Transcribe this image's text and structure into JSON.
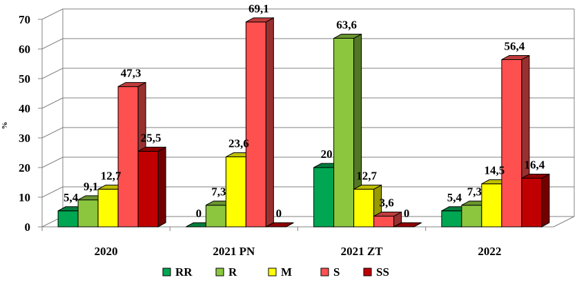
{
  "chart_data": {
    "type": "bar",
    "ylabel": "%",
    "ylim": [
      0,
      70
    ],
    "yticks": [
      0,
      10,
      20,
      30,
      40,
      50,
      60,
      70
    ],
    "grid": true,
    "legend_position": "bottom",
    "categories": [
      "2020",
      "2021 PN",
      "2021 ZT",
      "2022"
    ],
    "series": [
      {
        "name": "RR",
        "color": "#00a651",
        "values": [
          5.4,
          0,
          20,
          5.4
        ],
        "labels": [
          "5,4",
          "0",
          "20",
          "5,4"
        ]
      },
      {
        "name": "R",
        "color": "#8cc63f",
        "values": [
          9.1,
          7.3,
          63.6,
          7.3
        ],
        "labels": [
          "9,1",
          "7,3",
          "63,6",
          "7,3"
        ]
      },
      {
        "name": "M",
        "color": "#ffff00",
        "values": [
          12.7,
          23.6,
          12.7,
          14.5
        ],
        "labels": [
          "12,7",
          "23,6",
          "12,7",
          "14,5"
        ]
      },
      {
        "name": "S",
        "color": "#ff5050",
        "values": [
          47.3,
          69.1,
          3.6,
          56.4
        ],
        "labels": [
          "47,3",
          "69,1",
          "3,6",
          "56,4"
        ]
      },
      {
        "name": "SS",
        "color": "#c00000",
        "values": [
          25.5,
          0,
          0,
          16.4
        ],
        "labels": [
          "25,5",
          "0",
          "0",
          "16,4"
        ]
      }
    ]
  }
}
